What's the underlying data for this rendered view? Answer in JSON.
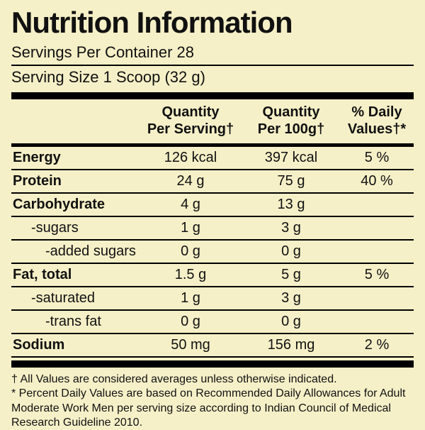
{
  "label": {
    "title": "Nutrition Information",
    "servings_per_container": "Servings Per Container 28",
    "serving_size": "Serving Size 1 Scoop (32 g)"
  },
  "table": {
    "header": {
      "per_serving_line1": "Quantity",
      "per_serving_line2": "Per Serving†",
      "per_100g_line1": "Quantity",
      "per_100g_line2": "Per 100g†",
      "daily_values_line1": "% Daily",
      "daily_values_line2": "Values†*"
    },
    "rows": [
      {
        "name": "Energy",
        "per_serving": "126 kcal",
        "per_100g": "397 kcal",
        "daily_value": "5 %"
      },
      {
        "name": "Protein",
        "per_serving": "24 g",
        "per_100g": "75 g",
        "daily_value": "40 %"
      },
      {
        "name": "Carbohydrate",
        "per_serving": "4 g",
        "per_100g": "13 g",
        "daily_value": ""
      },
      {
        "name": "-sugars",
        "per_serving": "1 g",
        "per_100g": "3 g",
        "daily_value": ""
      },
      {
        "name": "-added sugars",
        "per_serving": "0 g",
        "per_100g": "0 g",
        "daily_value": ""
      },
      {
        "name": "Fat, total",
        "per_serving": "1.5 g",
        "per_100g": "5 g",
        "daily_value": "5 %"
      },
      {
        "name": "-saturated",
        "per_serving": "1 g",
        "per_100g": "3 g",
        "daily_value": ""
      },
      {
        "name": "-trans fat",
        "per_serving": "0 g",
        "per_100g": "0 g",
        "daily_value": ""
      },
      {
        "name": "Sodium",
        "per_serving": "50 mg",
        "per_100g": "156 mg",
        "daily_value": "2 %"
      }
    ]
  },
  "footnotes": {
    "dagger_note": "† All Values are considered averages unless otherwise indicated.",
    "asterisk_note": "* Percent Daily Values are based on Recommended Daily Allowances for Adult Moderate Work Men per serving size according to Indian Council of Medical Research Guideline 2010."
  },
  "colors": {
    "background": "#f6f0c8",
    "text": "#111111",
    "rule": "#000000"
  }
}
